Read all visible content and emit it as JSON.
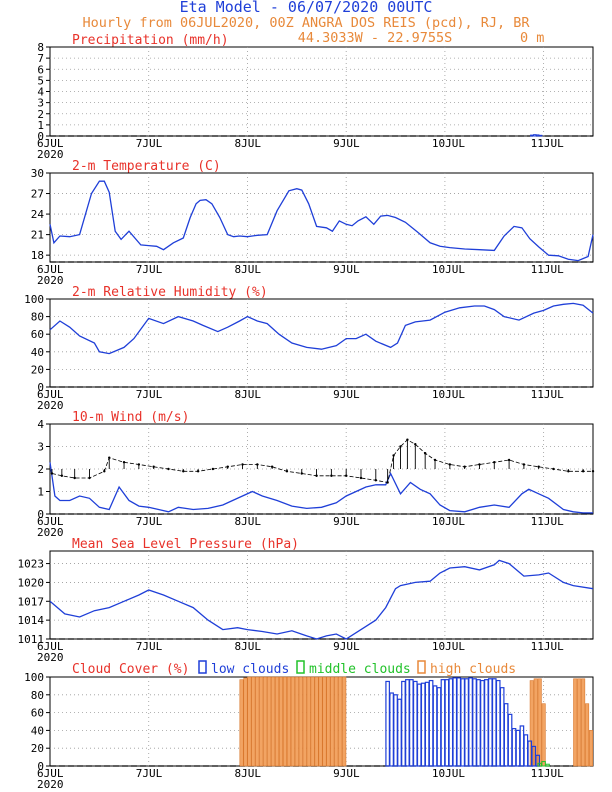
{
  "header": {
    "title": "Eta Model - 06/07/2020 00UTC",
    "subtitle": "Hourly from 06JUL2020, 00Z  ANGRA DOS REIS (pcd), RJ, BR",
    "coords": "44.3033W - 22.9755S",
    "elevation": "0   m"
  },
  "colors": {
    "title": "#1f3fd8",
    "orange": "#e8893a",
    "red": "#e8322a",
    "blue": "#1f3fd8",
    "green": "#22c22a",
    "axis": "#000000",
    "grid": "#9a9a9a",
    "cloud_fill": "#f2a463"
  },
  "x_axis": {
    "days": [
      {
        "label": "6JUL",
        "sub": "2020",
        "day": 0
      },
      {
        "label": "7JUL",
        "sub": "",
        "day": 1
      },
      {
        "label": "8JUL",
        "sub": "",
        "day": 2
      },
      {
        "label": "9JUL",
        "sub": "",
        "day": 3
      },
      {
        "label": "10JUL",
        "sub": "",
        "day": 4
      },
      {
        "label": "11JUL",
        "sub": "",
        "day": 5
      }
    ],
    "range_days": [
      0,
      5.5
    ]
  },
  "chart_data": [
    {
      "type": "bar",
      "id": "precip",
      "title": "Precipitation (mm/h)",
      "ylim": [
        0,
        8
      ],
      "yticks": [
        0,
        1,
        2,
        3,
        4,
        5,
        6,
        7,
        8
      ],
      "x_days": [
        4.88,
        4.91,
        4.94,
        4.97
      ],
      "values": [
        0.08,
        0.12,
        0.1,
        0.06
      ]
    },
    {
      "type": "line",
      "id": "temp",
      "title": "2-m Temperature (C)",
      "ylim": [
        17,
        30
      ],
      "yticks": [
        18,
        21,
        24,
        27,
        30
      ],
      "x": [
        0,
        0.04,
        0.1,
        0.2,
        0.3,
        0.42,
        0.5,
        0.55,
        0.6,
        0.66,
        0.72,
        0.8,
        0.92,
        1.0,
        1.08,
        1.15,
        1.25,
        1.35,
        1.42,
        1.48,
        1.52,
        1.58,
        1.64,
        1.72,
        1.8,
        1.86,
        1.92,
        2.0,
        2.1,
        2.2,
        2.3,
        2.42,
        2.5,
        2.55,
        2.62,
        2.7,
        2.8,
        2.86,
        2.93,
        3.0,
        3.06,
        3.12,
        3.2,
        3.28,
        3.35,
        3.42,
        3.5,
        3.6,
        3.72,
        3.85,
        3.95,
        4.05,
        4.2,
        4.35,
        4.5,
        4.6,
        4.7,
        4.78,
        4.86,
        4.95,
        5.05,
        5.15,
        5.25,
        5.35,
        5.45,
        5.5
      ],
      "values": [
        22.5,
        19.8,
        20.8,
        20.7,
        21.0,
        27.0,
        28.8,
        28.8,
        27.2,
        21.5,
        20.3,
        21.5,
        19.5,
        19.4,
        19.3,
        18.8,
        19.8,
        20.5,
        23.5,
        25.5,
        26.0,
        26.1,
        25.5,
        23.5,
        21.0,
        20.7,
        20.8,
        20.7,
        20.9,
        21.0,
        24.5,
        27.4,
        27.7,
        27.5,
        25.5,
        22.2,
        22.0,
        21.5,
        23.0,
        22.5,
        22.3,
        23.0,
        23.6,
        22.5,
        23.7,
        23.8,
        23.5,
        22.8,
        21.4,
        19.8,
        19.3,
        19.1,
        18.9,
        18.8,
        18.7,
        20.8,
        22.2,
        22.0,
        20.4,
        19.2,
        18.0,
        17.9,
        17.4,
        17.2,
        17.8,
        21.0
      ]
    },
    {
      "type": "line",
      "id": "rh",
      "title": "2-m Relative Humidity (%)",
      "ylim": [
        0,
        100
      ],
      "yticks": [
        0,
        20,
        40,
        60,
        80,
        100
      ],
      "x": [
        0,
        0.1,
        0.2,
        0.3,
        0.45,
        0.5,
        0.6,
        0.75,
        0.85,
        1.0,
        1.15,
        1.3,
        1.45,
        1.55,
        1.7,
        1.8,
        1.92,
        2.0,
        2.1,
        2.2,
        2.32,
        2.45,
        2.6,
        2.75,
        2.9,
        3.0,
        3.1,
        3.2,
        3.3,
        3.45,
        3.52,
        3.6,
        3.7,
        3.85,
        4.0,
        4.15,
        4.3,
        4.4,
        4.5,
        4.6,
        4.75,
        4.9,
        5.0,
        5.1,
        5.2,
        5.3,
        5.4,
        5.5
      ],
      "values": [
        65,
        75,
        68,
        58,
        50,
        40,
        38,
        45,
        55,
        78,
        72,
        80,
        75,
        70,
        63,
        68,
        75,
        80,
        75,
        72,
        60,
        50,
        45,
        43,
        47,
        55,
        55,
        60,
        52,
        45,
        50,
        70,
        74,
        76,
        85,
        90,
        92,
        92,
        88,
        80,
        76,
        84,
        87,
        92,
        94,
        95,
        93,
        84
      ]
    },
    {
      "type": "line",
      "id": "wind",
      "title": "10-m Wind (m/s)",
      "ylim": [
        0,
        4
      ],
      "yticks": [
        0,
        1,
        2,
        3,
        4
      ],
      "x": [
        0,
        0.05,
        0.1,
        0.2,
        0.3,
        0.4,
        0.5,
        0.6,
        0.7,
        0.8,
        0.9,
        1.0,
        1.1,
        1.2,
        1.3,
        1.45,
        1.6,
        1.75,
        1.85,
        1.95,
        2.05,
        2.15,
        2.3,
        2.45,
        2.6,
        2.75,
        2.9,
        3.0,
        3.1,
        3.2,
        3.3,
        3.4,
        3.45,
        3.55,
        3.65,
        3.75,
        3.85,
        3.95,
        4.05,
        4.2,
        4.35,
        4.5,
        4.65,
        4.78,
        4.85,
        4.95,
        5.05,
        5.2,
        5.3,
        5.4,
        5.5
      ],
      "values": [
        2.3,
        0.8,
        0.6,
        0.6,
        0.8,
        0.7,
        0.3,
        0.2,
        1.2,
        0.6,
        0.35,
        0.3,
        0.2,
        0.1,
        0.3,
        0.2,
        0.25,
        0.4,
        0.6,
        0.8,
        1.0,
        0.8,
        0.6,
        0.35,
        0.25,
        0.3,
        0.5,
        0.8,
        1.0,
        1.2,
        1.3,
        1.3,
        1.8,
        0.9,
        1.4,
        1.1,
        0.9,
        0.4,
        0.15,
        0.1,
        0.3,
        0.4,
        0.3,
        0.9,
        1.1,
        0.9,
        0.7,
        0.2,
        0.1,
        0.05,
        0.05
      ],
      "barbs": {
        "base": 2.0,
        "x": [
          0.02,
          0.12,
          0.25,
          0.4,
          0.55,
          0.6,
          0.75,
          0.9,
          1.05,
          1.2,
          1.35,
          1.5,
          1.65,
          1.8,
          1.95,
          2.1,
          2.25,
          2.4,
          2.55,
          2.7,
          2.85,
          3.0,
          3.15,
          3.3,
          3.42,
          3.48,
          3.55,
          3.62,
          3.7,
          3.8,
          3.9,
          4.05,
          4.2,
          4.35,
          4.5,
          4.65,
          4.8,
          4.95,
          5.1,
          5.25,
          5.4,
          5.5
        ],
        "y": [
          1.8,
          1.7,
          1.6,
          1.6,
          1.9,
          2.5,
          2.3,
          2.2,
          2.1,
          2.0,
          1.9,
          1.9,
          2.0,
          2.1,
          2.2,
          2.2,
          2.1,
          1.9,
          1.8,
          1.7,
          1.7,
          1.7,
          1.6,
          1.5,
          1.4,
          2.6,
          3.0,
          3.3,
          3.1,
          2.7,
          2.4,
          2.2,
          2.1,
          2.2,
          2.3,
          2.4,
          2.2,
          2.1,
          2.0,
          1.9,
          1.9,
          1.9
        ]
      }
    },
    {
      "type": "line",
      "id": "mslp",
      "title": "Mean Sea Level Pressure (hPa)",
      "ylim": [
        1011,
        1025
      ],
      "yticks": [
        1011,
        1014,
        1017,
        1020,
        1023
      ],
      "x": [
        0,
        0.15,
        0.3,
        0.45,
        0.6,
        0.75,
        0.9,
        1.0,
        1.15,
        1.3,
        1.45,
        1.6,
        1.75,
        1.9,
        2.0,
        2.15,
        2.3,
        2.45,
        2.6,
        2.7,
        2.8,
        2.9,
        3.0,
        3.1,
        3.2,
        3.3,
        3.4,
        3.5,
        3.55,
        3.7,
        3.85,
        3.95,
        4.05,
        4.2,
        4.35,
        4.5,
        4.55,
        4.65,
        4.8,
        4.95,
        5.05,
        5.2,
        5.3,
        5.5
      ],
      "values": [
        1017,
        1015,
        1014.5,
        1015.5,
        1016,
        1017,
        1018,
        1018.8,
        1018,
        1017,
        1016,
        1014,
        1012.5,
        1012.8,
        1012.5,
        1012.2,
        1011.8,
        1012.3,
        1011.5,
        1011,
        1011.5,
        1011.8,
        1011,
        1012,
        1013,
        1014,
        1016,
        1019,
        1019.5,
        1020,
        1020.2,
        1021.5,
        1022.3,
        1022.5,
        1022,
        1022.8,
        1023.5,
        1023,
        1021,
        1021.2,
        1021.5,
        1020,
        1019.5,
        1019
      ]
    },
    {
      "type": "bar",
      "id": "cloud",
      "title": "Cloud Cover (%)",
      "legend": [
        "low clouds",
        "middle clouds",
        "high clouds"
      ],
      "ylim": [
        0,
        100
      ],
      "yticks": [
        0,
        20,
        40,
        60,
        80,
        100
      ],
      "high": {
        "x": [
          1.94,
          1.98,
          2.02,
          2.06,
          2.1,
          2.14,
          2.18,
          2.22,
          2.26,
          2.3,
          2.34,
          2.38,
          2.42,
          2.46,
          2.5,
          2.54,
          2.58,
          2.62,
          2.66,
          2.7,
          2.74,
          2.78,
          2.82,
          2.86,
          2.9,
          2.94,
          2.98,
          4.88,
          4.92,
          4.96,
          5.0,
          5.32,
          5.36,
          5.4,
          5.44,
          5.48
        ],
        "values": [
          97,
          99,
          100,
          100,
          100,
          100,
          100,
          100,
          100,
          100,
          100,
          100,
          100,
          100,
          100,
          100,
          100,
          100,
          100,
          100,
          100,
          100,
          100,
          100,
          100,
          100,
          100,
          96,
          98,
          98,
          70,
          98,
          98,
          98,
          70,
          40
        ]
      },
      "low": {
        "x": [
          3.42,
          3.46,
          3.5,
          3.54,
          3.58,
          3.62,
          3.66,
          3.7,
          3.74,
          3.78,
          3.82,
          3.86,
          3.9,
          3.94,
          3.98,
          4.02,
          4.06,
          4.1,
          4.14,
          4.18,
          4.22,
          4.26,
          4.3,
          4.34,
          4.38,
          4.42,
          4.46,
          4.5,
          4.54,
          4.58,
          4.62,
          4.66,
          4.7,
          4.74,
          4.78,
          4.82,
          4.86,
          4.9,
          4.94
        ],
        "values": [
          95,
          82,
          80,
          75,
          95,
          97,
          97,
          95,
          92,
          93,
          94,
          96,
          90,
          88,
          97,
          97,
          98,
          99,
          99,
          98,
          98,
          99,
          98,
          97,
          96,
          97,
          98,
          98,
          96,
          88,
          70,
          58,
          42,
          40,
          45,
          35,
          28,
          22,
          12
        ]
      },
      "middle": {
        "x": [
          4.96,
          5.0,
          5.04
        ],
        "values": [
          3,
          5,
          2
        ]
      }
    }
  ]
}
